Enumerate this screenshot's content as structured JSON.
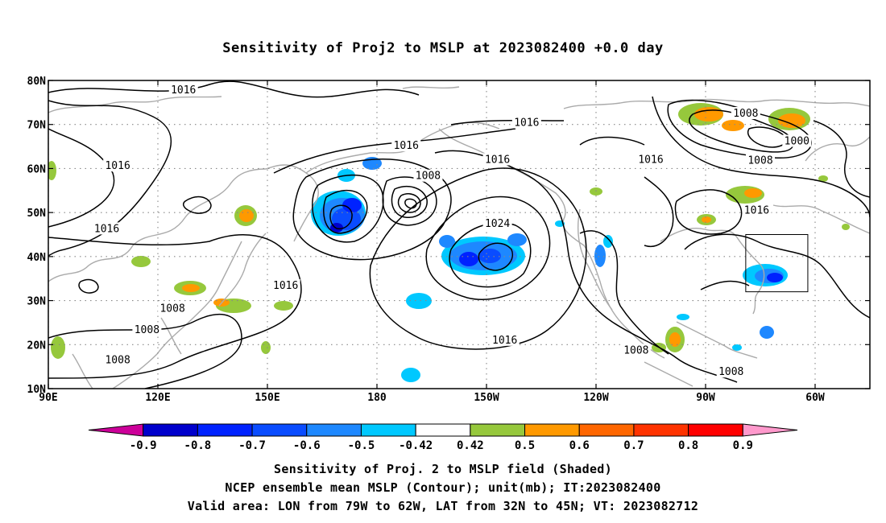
{
  "title": "Sensitivity of Proj2 to MSLP at 2023082400 +0.0 day",
  "captions": [
    "Sensitivity of Proj. 2 to MSLP field (Shaded)",
    "NCEP ensemble mean MSLP (Contour); unit(mb); IT:2023082400",
    "Valid area: LON from 79W to 62W, LAT from 32N to 45N; VT: 2023082712"
  ],
  "axes": {
    "lon_ticks": [
      "90E",
      "120E",
      "150E",
      "180",
      "150W",
      "120W",
      "90W",
      "60W"
    ],
    "lon_values": [
      90,
      120,
      150,
      180,
      210,
      240,
      270,
      300
    ],
    "lat_ticks": [
      "10N",
      "20N",
      "30N",
      "40N",
      "50N",
      "60N",
      "70N",
      "80N"
    ],
    "lat_values": [
      10,
      20,
      30,
      40,
      50,
      60,
      70,
      80
    ],
    "lon_range": [
      90,
      315
    ],
    "lat_range": [
      10,
      80
    ],
    "grid": "dotted"
  },
  "colorbar": {
    "labels": [
      "-0.9",
      "-0.8",
      "-0.7",
      "-0.6",
      "-0.5",
      "-0.42",
      "0.42",
      "0.5",
      "0.6",
      "0.7",
      "0.8",
      "0.9"
    ],
    "colors": [
      "#cc0099",
      "#0000cc",
      "#0022ff",
      "#0a4cff",
      "#1e88ff",
      "#00c8ff",
      "#ffffff",
      "#96c83c",
      "#ff9900",
      "#ff6600",
      "#ff3300",
      "#ff0000",
      "#ff99cc"
    ]
  },
  "contour_labels": [
    {
      "text": "1016",
      "lon": 127,
      "lat": 77.8
    },
    {
      "text": "1016",
      "lon": 221,
      "lat": 70.4
    },
    {
      "text": "1016",
      "lon": 188,
      "lat": 65.2
    },
    {
      "text": "1016",
      "lon": 109,
      "lat": 60.6
    },
    {
      "text": "1016",
      "lon": 213,
      "lat": 62.0
    },
    {
      "text": "1016",
      "lon": 255,
      "lat": 62.0
    },
    {
      "text": "1008",
      "lon": 194,
      "lat": 58.3
    },
    {
      "text": "1008",
      "lon": 281,
      "lat": 72.5
    },
    {
      "text": "1000",
      "lon": 295,
      "lat": 66.2
    },
    {
      "text": "1008",
      "lon": 285,
      "lat": 61.8
    },
    {
      "text": "1016",
      "lon": 106,
      "lat": 46.3
    },
    {
      "text": "1024",
      "lon": 213,
      "lat": 47.5
    },
    {
      "text": "1016",
      "lon": 284,
      "lat": 50.5
    },
    {
      "text": "1016",
      "lon": 155,
      "lat": 33.4
    },
    {
      "text": "1008",
      "lon": 124,
      "lat": 28.2
    },
    {
      "text": "1008",
      "lon": 117,
      "lat": 23.3
    },
    {
      "text": "1016",
      "lon": 215,
      "lat": 21.0
    },
    {
      "text": "1008",
      "lon": 251,
      "lat": 18.7
    },
    {
      "text": "1008",
      "lon": 109,
      "lat": 16.5
    },
    {
      "text": "1008",
      "lon": 277,
      "lat": 13.8
    }
  ],
  "valid_box": {
    "lon_min": 281,
    "lon_max": 298,
    "lat_min": 32,
    "lat_max": 45
  }
}
